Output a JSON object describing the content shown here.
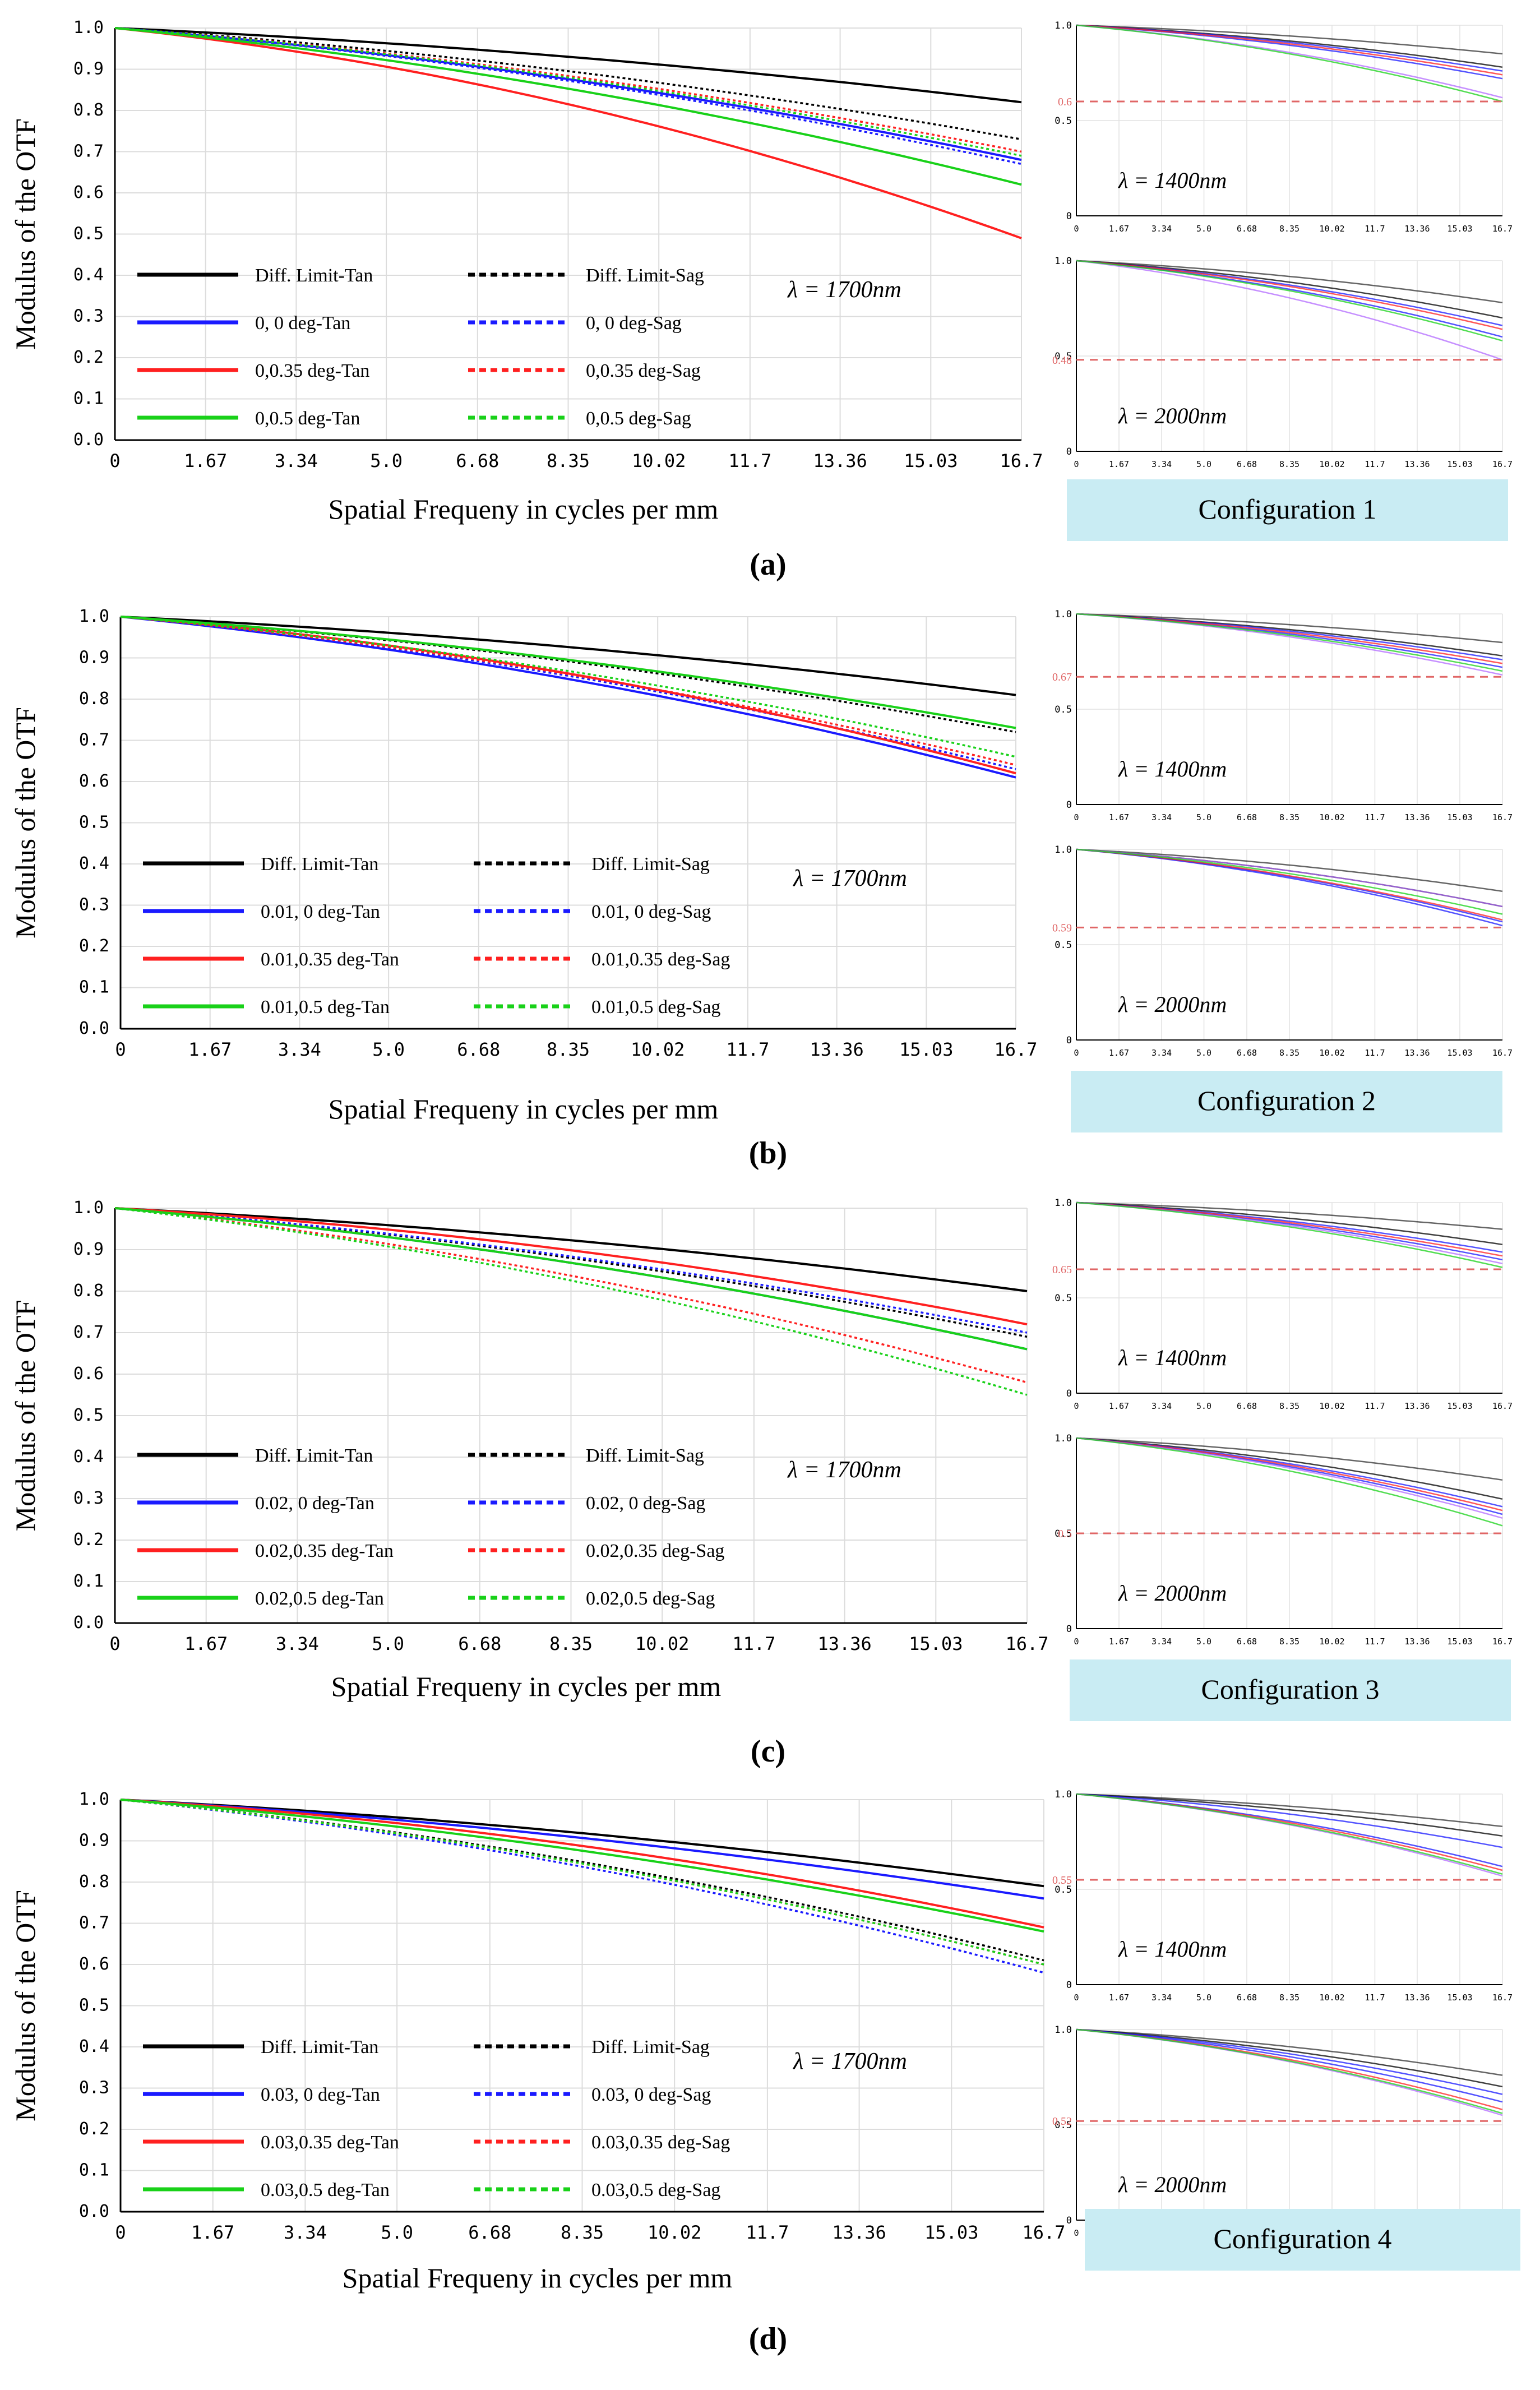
{
  "figure": {
    "ylabel": "Modulus of the OTF",
    "xlabel": "Spatial Frequeny in cycles per mm",
    "main_lambda": "λ = 1700nm",
    "small_lambda_top": "λ = 1400nm",
    "small_lambda_bottom": "λ = 2000nm",
    "x_ticks": [
      "0",
      "1.67",
      "3.34",
      "5.0",
      "6.68",
      "8.35",
      "10.02",
      "11.7",
      "13.36",
      "15.03",
      "16.7"
    ],
    "y_ticks": [
      "0.0",
      "0.1",
      "0.2",
      "0.3",
      "0.4",
      "0.5",
      "0.6",
      "0.7",
      "0.8",
      "0.9",
      "1.0"
    ],
    "small_y_ticks": [
      "0",
      "0.5",
      "1.0"
    ],
    "colors": {
      "black": "#000000",
      "blue": "#1a1aff",
      "red": "#ff2020",
      "green": "#19d119",
      "threshold": "#e06666",
      "config_box": "#c9ecf3"
    }
  },
  "chart_data": [
    {
      "panel": "(a)",
      "config_label": "Configuration 1",
      "type": "line",
      "title": "",
      "xlabel": "Spatial Frequeny in cycles per mm",
      "ylabel": "Modulus of the OTF",
      "xlim": [
        0,
        16.7
      ],
      "ylim": [
        0,
        1
      ],
      "x": [
        0,
        1.67,
        3.34,
        5.0,
        6.68,
        8.35,
        10.02,
        11.7,
        13.36,
        15.03,
        16.7
      ],
      "series": [
        {
          "name": "Diff. Limit-Tan",
          "color": "black",
          "style": "solid",
          "end": 0.82
        },
        {
          "name": "Diff. Limit-Sag",
          "color": "black",
          "style": "dotted",
          "end": 0.73
        },
        {
          "name": "0, 0 deg-Tan",
          "color": "blue",
          "style": "solid",
          "end": 0.68
        },
        {
          "name": "0, 0 deg-Sag",
          "color": "blue",
          "style": "dotted",
          "end": 0.67
        },
        {
          "name": "0,0.35 deg-Tan",
          "color": "red",
          "style": "solid",
          "end": 0.49
        },
        {
          "name": "0,0.35 deg-Sag",
          "color": "red",
          "style": "dotted",
          "end": 0.7
        },
        {
          "name": "0,0.5 deg-Tan",
          "color": "green",
          "style": "solid",
          "end": 0.62
        },
        {
          "name": "0,0.5 deg-Sag",
          "color": "green",
          "style": "dotted",
          "end": 0.69
        }
      ],
      "lambda": "λ = 1700nm",
      "small": [
        {
          "lambda": "λ = 1400nm",
          "threshold": 0.6,
          "threshold_label": "0.6",
          "ends": [
            0.85,
            0.78,
            0.76,
            0.72,
            0.74,
            0.62,
            0.6
          ]
        },
        {
          "lambda": "λ = 2000nm",
          "threshold": 0.48,
          "threshold_label": "0.48",
          "ends": [
            0.78,
            0.7,
            0.66,
            0.6,
            0.64,
            0.48,
            0.58
          ]
        }
      ]
    },
    {
      "panel": "(b)",
      "config_label": "Configuration 2",
      "type": "line",
      "title": "",
      "xlabel": "Spatial Frequeny in cycles per mm",
      "ylabel": "Modulus of the OTF",
      "xlim": [
        0,
        16.7
      ],
      "ylim": [
        0,
        1
      ],
      "x": [
        0,
        1.67,
        3.34,
        5.0,
        6.68,
        8.35,
        10.02,
        11.7,
        13.36,
        15.03,
        16.7
      ],
      "series": [
        {
          "name": "Diff. Limit-Tan",
          "color": "black",
          "style": "solid",
          "end": 0.81
        },
        {
          "name": "Diff. Limit-Sag",
          "color": "black",
          "style": "dotted",
          "end": 0.72
        },
        {
          "name": "0.01, 0 deg-Tan",
          "color": "blue",
          "style": "solid",
          "end": 0.61
        },
        {
          "name": "0.01, 0 deg-Sag",
          "color": "blue",
          "style": "dotted",
          "end": 0.63
        },
        {
          "name": "0.01,0.35 deg-Tan",
          "color": "red",
          "style": "solid",
          "end": 0.62
        },
        {
          "name": "0.01,0.35 deg-Sag",
          "color": "red",
          "style": "dotted",
          "end": 0.64
        },
        {
          "name": "0.01,0.5 deg-Tan",
          "color": "green",
          "style": "solid",
          "end": 0.73
        },
        {
          "name": "0.01,0.5 deg-Sag",
          "color": "green",
          "style": "dotted",
          "end": 0.66
        }
      ],
      "lambda": "λ = 1700nm",
      "small": [
        {
          "lambda": "λ = 1400nm",
          "threshold": 0.67,
          "threshold_label": "0.67",
          "ends": [
            0.85,
            0.78,
            0.76,
            0.72,
            0.74,
            0.68,
            0.7
          ]
        },
        {
          "lambda": "λ = 2000nm",
          "threshold": 0.59,
          "threshold_label": "0.59",
          "ends": [
            0.78,
            0.7,
            0.62,
            0.6,
            0.63,
            0.7,
            0.66
          ]
        }
      ]
    },
    {
      "panel": "(c)",
      "config_label": "Configuration 3",
      "type": "line",
      "title": "",
      "xlabel": "Spatial Frequeny in cycles per mm",
      "ylabel": "Modulus of the OTF",
      "xlim": [
        0,
        16.7
      ],
      "ylim": [
        0,
        1
      ],
      "x": [
        0,
        1.67,
        3.34,
        5.0,
        6.68,
        8.35,
        10.02,
        11.7,
        13.36,
        15.03,
        16.7
      ],
      "series": [
        {
          "name": "Diff. Limit-Tan",
          "color": "black",
          "style": "solid",
          "end": 0.8
        },
        {
          "name": "Diff. Limit-Sag",
          "color": "black",
          "style": "dotted",
          "end": 0.69
        },
        {
          "name": "0.02, 0 deg-Tan",
          "color": "blue",
          "style": "solid",
          "end": 0.66
        },
        {
          "name": "0.02, 0 deg-Sag",
          "color": "blue",
          "style": "dotted",
          "end": 0.7
        },
        {
          "name": "0.02,0.35 deg-Tan",
          "color": "red",
          "style": "solid",
          "end": 0.72
        },
        {
          "name": "0.02,0.35 deg-Sag",
          "color": "red",
          "style": "dotted",
          "end": 0.58
        },
        {
          "name": "0.02,0.5 deg-Tan",
          "color": "green",
          "style": "solid",
          "end": 0.66
        },
        {
          "name": "0.02,0.5 deg-Sag",
          "color": "green",
          "style": "dotted",
          "end": 0.55
        }
      ],
      "lambda": "λ = 1700nm",
      "small": [
        {
          "lambda": "λ = 1400nm",
          "threshold": 0.65,
          "threshold_label": "0.65",
          "ends": [
            0.86,
            0.78,
            0.74,
            0.7,
            0.72,
            0.68,
            0.66
          ]
        },
        {
          "lambda": "λ = 2000nm",
          "threshold": 0.5,
          "threshold_label": "0.5",
          "ends": [
            0.78,
            0.68,
            0.64,
            0.6,
            0.62,
            0.58,
            0.54
          ]
        }
      ]
    },
    {
      "panel": "(d)",
      "config_label": "Configuration 4",
      "type": "line",
      "title": "",
      "xlabel": "Spatial Frequeny in cycles per mm",
      "ylabel": "Modulus of the OTF",
      "xlim": [
        0,
        16.7
      ],
      "ylim": [
        0,
        1
      ],
      "x": [
        0,
        1.67,
        3.34,
        5.0,
        6.68,
        8.35,
        10.02,
        11.7,
        13.36,
        15.03,
        16.7
      ],
      "series": [
        {
          "name": "Diff. Limit-Tan",
          "color": "black",
          "style": "solid",
          "end": 0.79
        },
        {
          "name": "Diff. Limit-Sag",
          "color": "black",
          "style": "dotted",
          "end": 0.61
        },
        {
          "name": "0.03, 0 deg-Tan",
          "color": "blue",
          "style": "solid",
          "end": 0.76
        },
        {
          "name": "0.03, 0 deg-Sag",
          "color": "blue",
          "style": "dotted",
          "end": 0.58
        },
        {
          "name": "0.03,0.35 deg-Tan",
          "color": "red",
          "style": "solid",
          "end": 0.69
        },
        {
          "name": "0.03,0.35 deg-Sag",
          "color": "red",
          "style": "dotted",
          "end": 0.6
        },
        {
          "name": "0.03,0.5 deg-Tan",
          "color": "green",
          "style": "solid",
          "end": 0.68
        },
        {
          "name": "0.03,0.5 deg-Sag",
          "color": "green",
          "style": "dotted",
          "end": 0.6
        }
      ],
      "lambda": "λ = 1700nm",
      "small": [
        {
          "lambda": "λ = 1400nm",
          "threshold": 0.55,
          "threshold_label": "0.55",
          "ends": [
            0.83,
            0.78,
            0.72,
            0.62,
            0.6,
            0.57,
            0.58
          ]
        },
        {
          "lambda": "λ = 2000nm",
          "threshold": 0.52,
          "threshold_label": "0.52",
          "ends": [
            0.76,
            0.7,
            0.66,
            0.62,
            0.58,
            0.55,
            0.56
          ]
        }
      ]
    }
  ]
}
